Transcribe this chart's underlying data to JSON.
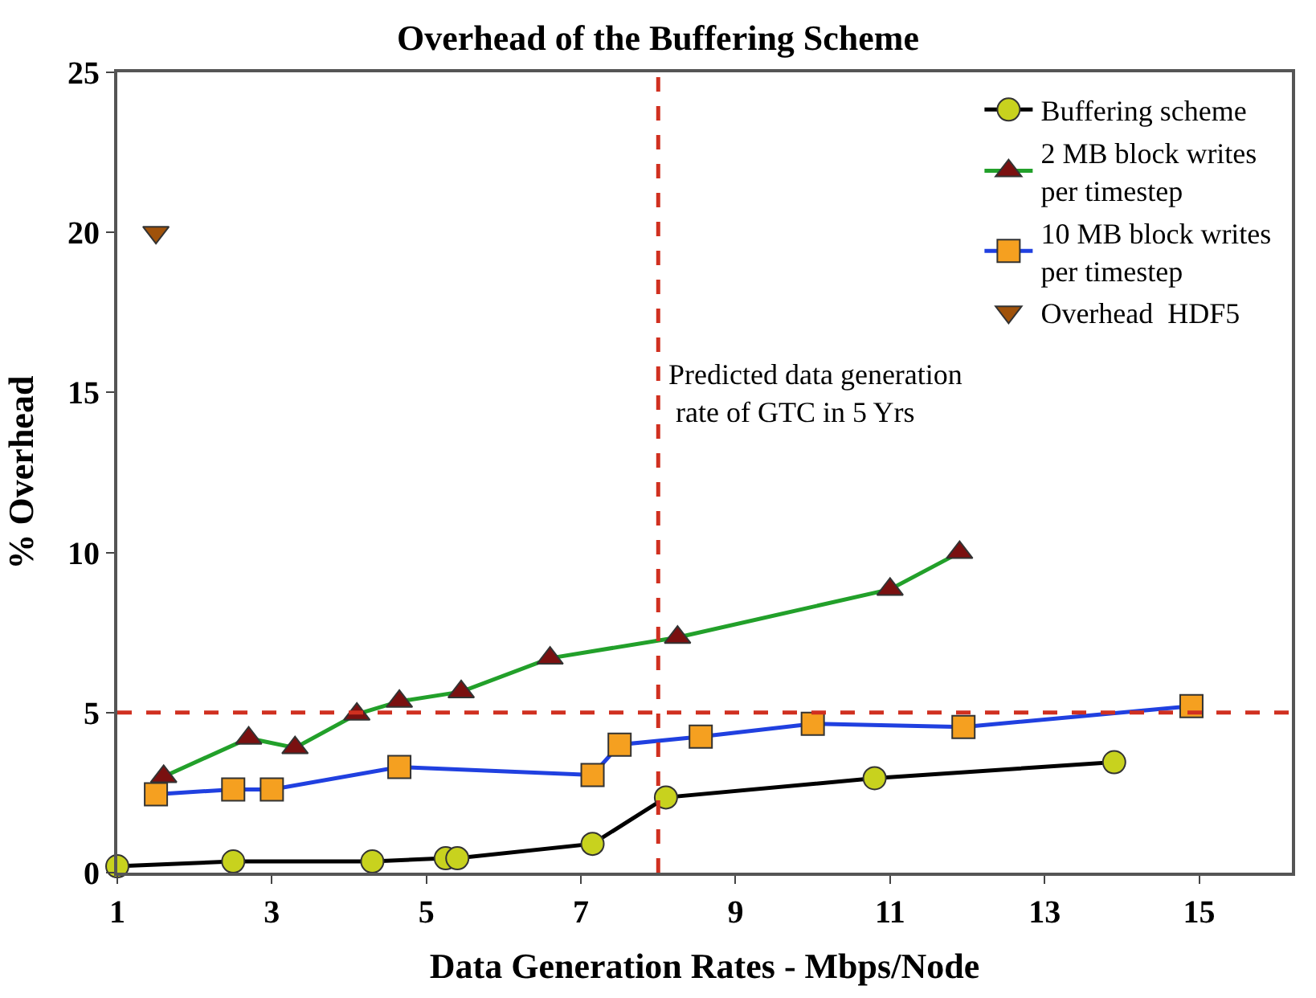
{
  "chart_data": {
    "type": "line",
    "title": "Overhead of the Buffering Scheme",
    "xlabel": "Data Generation Rates - Mbps/Node",
    "ylabel": "% Overhead",
    "xlim": [
      1,
      16.2
    ],
    "xticks": [
      1,
      3,
      5,
      7,
      9,
      11,
      13,
      15
    ],
    "ylim": [
      0,
      25
    ],
    "yticks": [
      0,
      5,
      10,
      15,
      20,
      25
    ],
    "legend": "top right",
    "series": [
      {
        "name": "Buffering scheme",
        "color": "#000000",
        "marker": "circle",
        "colors": [
          "#c8d21e",
          "#c8d21e",
          "#c8d21e",
          "#c8d21e",
          "#c8d21e",
          "#c8d21e",
          "#c8d21e",
          "#c8d21e",
          "#c8d21e"
        ],
        "x": [
          1.0,
          2.5,
          4.3,
          5.25,
          5.4,
          7.15,
          8.1,
          10.8,
          13.9
        ],
        "values": [
          0.2,
          0.35,
          0.35,
          0.45,
          0.45,
          0.9,
          2.35,
          2.95,
          3.45
        ]
      },
      {
        "name": "2 MB block writes\nper timestep",
        "color": "#22a02a",
        "marker": "triangle",
        "colors": [
          "#7a1010",
          "#7a1010",
          "#7a1010",
          "#7a1010",
          "#7a1010",
          "#7a1010",
          "#7a1010",
          "#7a1010",
          "#7a1010",
          "#7a1010"
        ],
        "x": [
          1.6,
          2.7,
          3.3,
          4.1,
          4.65,
          5.45,
          6.6,
          8.25,
          11.0,
          11.9
        ],
        "values": [
          3.0,
          4.2,
          3.9,
          4.95,
          5.35,
          5.65,
          6.7,
          7.35,
          8.85,
          10.0
        ]
      },
      {
        "name": "10 MB block writes\nper timestep",
        "color": "#2040e0",
        "marker": "square",
        "colors": [
          "#f5a020",
          "#f5a020",
          "#f5a020",
          "#f5a020",
          "#f5a020",
          "#f5a020",
          "#f5a020",
          "#f5a020",
          "#f5a020",
          "#f5a020"
        ],
        "x": [
          1.5,
          2.5,
          3.0,
          4.65,
          7.15,
          7.5,
          8.55,
          10.0,
          11.95,
          14.9
        ],
        "values": [
          2.45,
          2.6,
          2.6,
          3.3,
          3.05,
          4.0,
          4.25,
          4.65,
          4.55,
          5.2
        ]
      },
      {
        "name": "Overhead  HDF5",
        "type": "scatter",
        "color": "#a0520a",
        "marker": "triangle-down",
        "x": [
          1.5
        ],
        "values": [
          20
        ]
      }
    ],
    "ref_lines": [
      {
        "axis": "y",
        "value": 5,
        "color": "#d03020",
        "line_style": "dashed"
      },
      {
        "axis": "x",
        "value": 8,
        "color": "#d03020",
        "line_style": "dashed",
        "label": "Predicted data generation\n rate of GTC in 5 Yrs"
      }
    ]
  }
}
